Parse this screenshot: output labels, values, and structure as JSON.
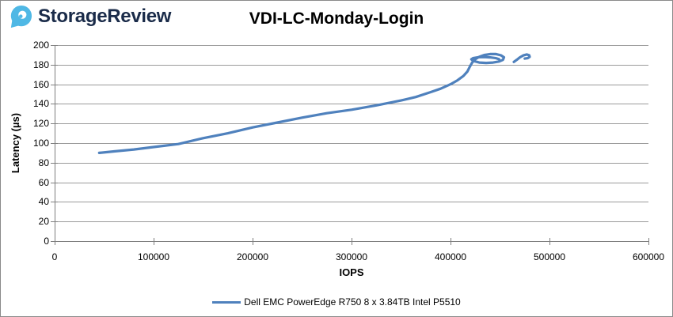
{
  "logo": {
    "brand": "StorageReview",
    "icon_color": "#4FB8E5",
    "text_color": "#1a2b49"
  },
  "header": {
    "title": "VDI-LC-Monday-Login"
  },
  "chart_data": {
    "type": "line",
    "title": "VDI-LC-Monday-Login",
    "xlabel": "IOPS",
    "ylabel": "Latency (µs)",
    "xlim": [
      0,
      600000
    ],
    "ylim": [
      0,
      200
    ],
    "x_ticks": [
      0,
      100000,
      200000,
      300000,
      400000,
      500000,
      600000
    ],
    "x_tick_labels": [
      "0",
      "100000",
      "200000",
      "300000",
      "400000",
      "500000",
      "600000"
    ],
    "y_ticks": [
      0,
      20,
      40,
      60,
      80,
      100,
      120,
      140,
      160,
      180,
      200
    ],
    "y_tick_labels": [
      "0",
      "20",
      "40",
      "60",
      "80",
      "100",
      "120",
      "140",
      "160",
      "180",
      "200"
    ],
    "grid": "horizontal-only",
    "legend_position": "bottom-center",
    "gridline_color": "#9a9a9a",
    "axis_color": "#7f7f7f",
    "series": [
      {
        "name": "Dell EMC PowerEdge R750 8 x 3.84TB Intel P5510",
        "color": "#4F81BD",
        "segments": [
          [
            [
              45000,
              90
            ],
            [
              60000,
              91.5
            ],
            [
              80000,
              93.5
            ],
            [
              100000,
              96
            ],
            [
              125000,
              99
            ],
            [
              150000,
              105
            ],
            [
              175000,
              110
            ],
            [
              200000,
              116
            ],
            [
              225000,
              121
            ],
            [
              250000,
              126
            ],
            [
              275000,
              130.5
            ],
            [
              300000,
              134
            ],
            [
              325000,
              138.5
            ],
            [
              350000,
              143.5
            ],
            [
              365000,
              147
            ],
            [
              380000,
              152
            ],
            [
              390000,
              155.5
            ],
            [
              400000,
              160
            ],
            [
              407000,
              164
            ],
            [
              413000,
              168.5
            ],
            [
              417000,
              173
            ],
            [
              419500,
              178
            ],
            [
              421500,
              181.5
            ],
            [
              424000,
              185
            ],
            [
              429000,
              188
            ],
            [
              434000,
              189.8
            ],
            [
              440000,
              190.8
            ],
            [
              446000,
              190.8
            ],
            [
              451000,
              189.5
            ],
            [
              454000,
              187.5
            ],
            [
              453000,
              185
            ],
            [
              449000,
              183.2
            ],
            [
              443000,
              182.2
            ],
            [
              436000,
              181.8
            ],
            [
              429000,
              182.2
            ],
            [
              423000,
              183.8
            ],
            [
              421000,
              185.5
            ],
            [
              423000,
              186.8
            ],
            [
              428000,
              187.6
            ],
            [
              434000,
              187.8
            ],
            [
              440000,
              187.4
            ],
            [
              446000,
              186.6
            ],
            [
              449000,
              185.6
            ]
          ],
          [
            [
              464000,
              182.8
            ],
            [
              467000,
              185
            ],
            [
              470000,
              187.4
            ],
            [
              473500,
              189.4
            ],
            [
              477000,
              190.4
            ],
            [
              479500,
              189.6
            ],
            [
              480000,
              188
            ],
            [
              478000,
              186.6
            ],
            [
              475000,
              186.2
            ]
          ]
        ]
      }
    ]
  }
}
